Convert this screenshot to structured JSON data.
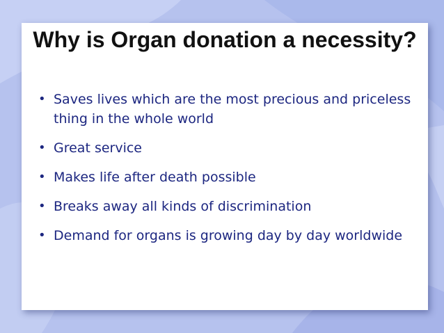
{
  "slide": {
    "title": "Why is Organ donation a necessity?",
    "bullets": [
      "Saves lives which are the most precious and priceless thing in the whole world",
      "Great service",
      "Makes life after death possible",
      "Breaks away all kinds of discrimination",
      "Demand for organs is growing day by day worldwide"
    ]
  },
  "colors": {
    "background": "#b7c3ee",
    "panel": "#ffffff",
    "title_text": "#111111",
    "bullet_text": "#1c2680"
  }
}
